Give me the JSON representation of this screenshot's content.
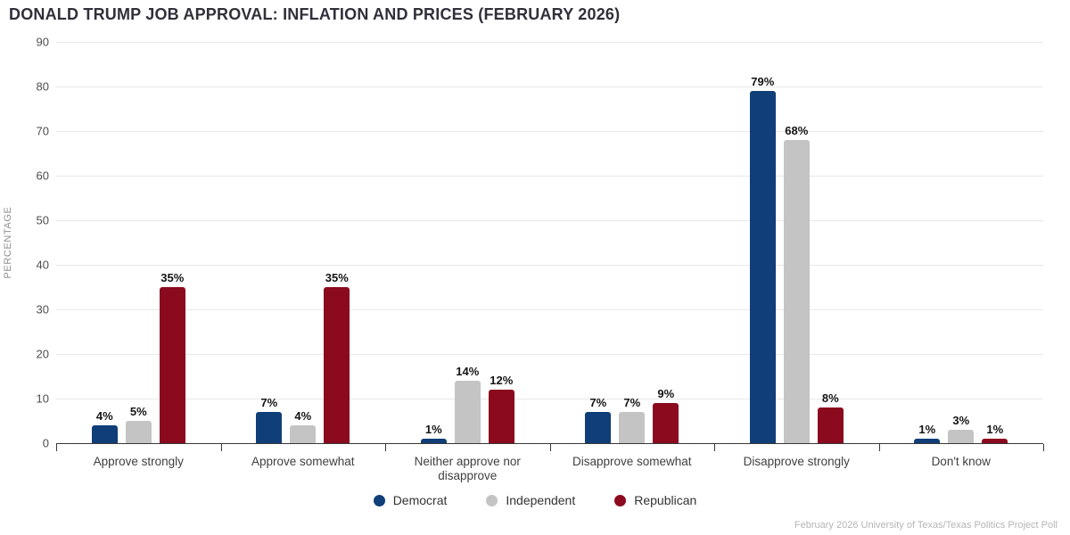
{
  "chart_data": {
    "type": "bar",
    "title": "DONALD TRUMP JOB APPROVAL: INFLATION AND PRICES (FEBRUARY 2026)",
    "xlabel": "",
    "ylabel": "PERCENTAGE",
    "ylim": [
      0,
      90
    ],
    "ytick_interval": 10,
    "grid": true,
    "legend_position": "bottom",
    "value_suffix": "%",
    "categories": [
      "Approve strongly",
      "Approve somewhat",
      "Neither approve nor disapprove",
      "Disapprove somewhat",
      "Disapprove strongly",
      "Don't know"
    ],
    "series": [
      {
        "name": "Democrat",
        "color": "#103e78",
        "values": [
          4,
          7,
          1,
          7,
          79,
          1
        ]
      },
      {
        "name": "Independent",
        "color": "#c4c4c4",
        "values": [
          5,
          4,
          14,
          7,
          68,
          3
        ]
      },
      {
        "name": "Republican",
        "color": "#8b0a1d",
        "values": [
          35,
          35,
          12,
          9,
          8,
          1
        ]
      }
    ],
    "source": "February 2026 University of Texas/Texas Politics Project Poll"
  }
}
